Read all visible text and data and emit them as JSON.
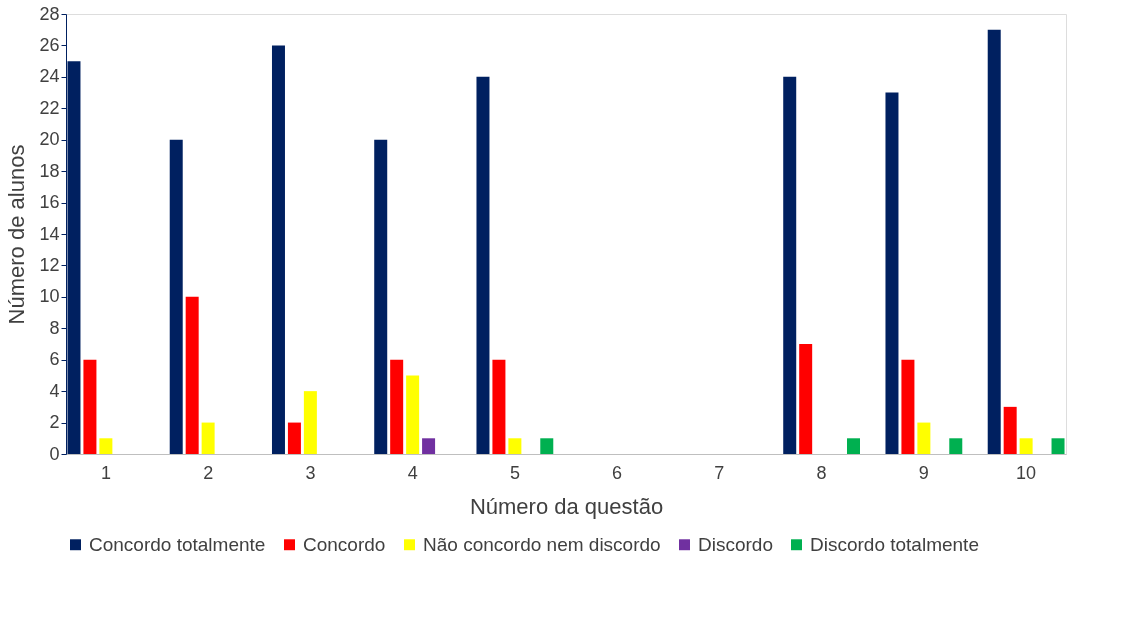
{
  "chart_data": {
    "type": "bar",
    "xlabel": "Número da questão",
    "ylabel": "Número de alunos",
    "categories": [
      "1",
      "2",
      "3",
      "4",
      "5",
      "6",
      "7",
      "8",
      "9",
      "10"
    ],
    "series": [
      {
        "name": "Concordo totalmente",
        "color": "#002060",
        "values": [
          25,
          20,
          26,
          20,
          24,
          0,
          0,
          24,
          23,
          27
        ]
      },
      {
        "name": "Concordo",
        "color": "#ff0000",
        "values": [
          6,
          10,
          2,
          6,
          6,
          0,
          0,
          7,
          6,
          3
        ]
      },
      {
        "name": "Não concordo nem discordo",
        "color": "#ffff00",
        "values": [
          1,
          2,
          4,
          5,
          1,
          0,
          0,
          0,
          2,
          1
        ]
      },
      {
        "name": "Discordo",
        "color": "#7030a0",
        "values": [
          0,
          0,
          0,
          1,
          0,
          0,
          0,
          0,
          0,
          0
        ]
      },
      {
        "name": "Discordo totalmente",
        "color": "#00b050",
        "values": [
          0,
          0,
          0,
          0,
          1,
          0,
          0,
          1,
          1,
          1
        ]
      }
    ],
    "ylim": [
      0,
      28
    ],
    "yticks": [
      0,
      2,
      4,
      6,
      8,
      10,
      12,
      14,
      16,
      18,
      20,
      22,
      24,
      26,
      28
    ],
    "grid": false,
    "legend": "bottom"
  }
}
